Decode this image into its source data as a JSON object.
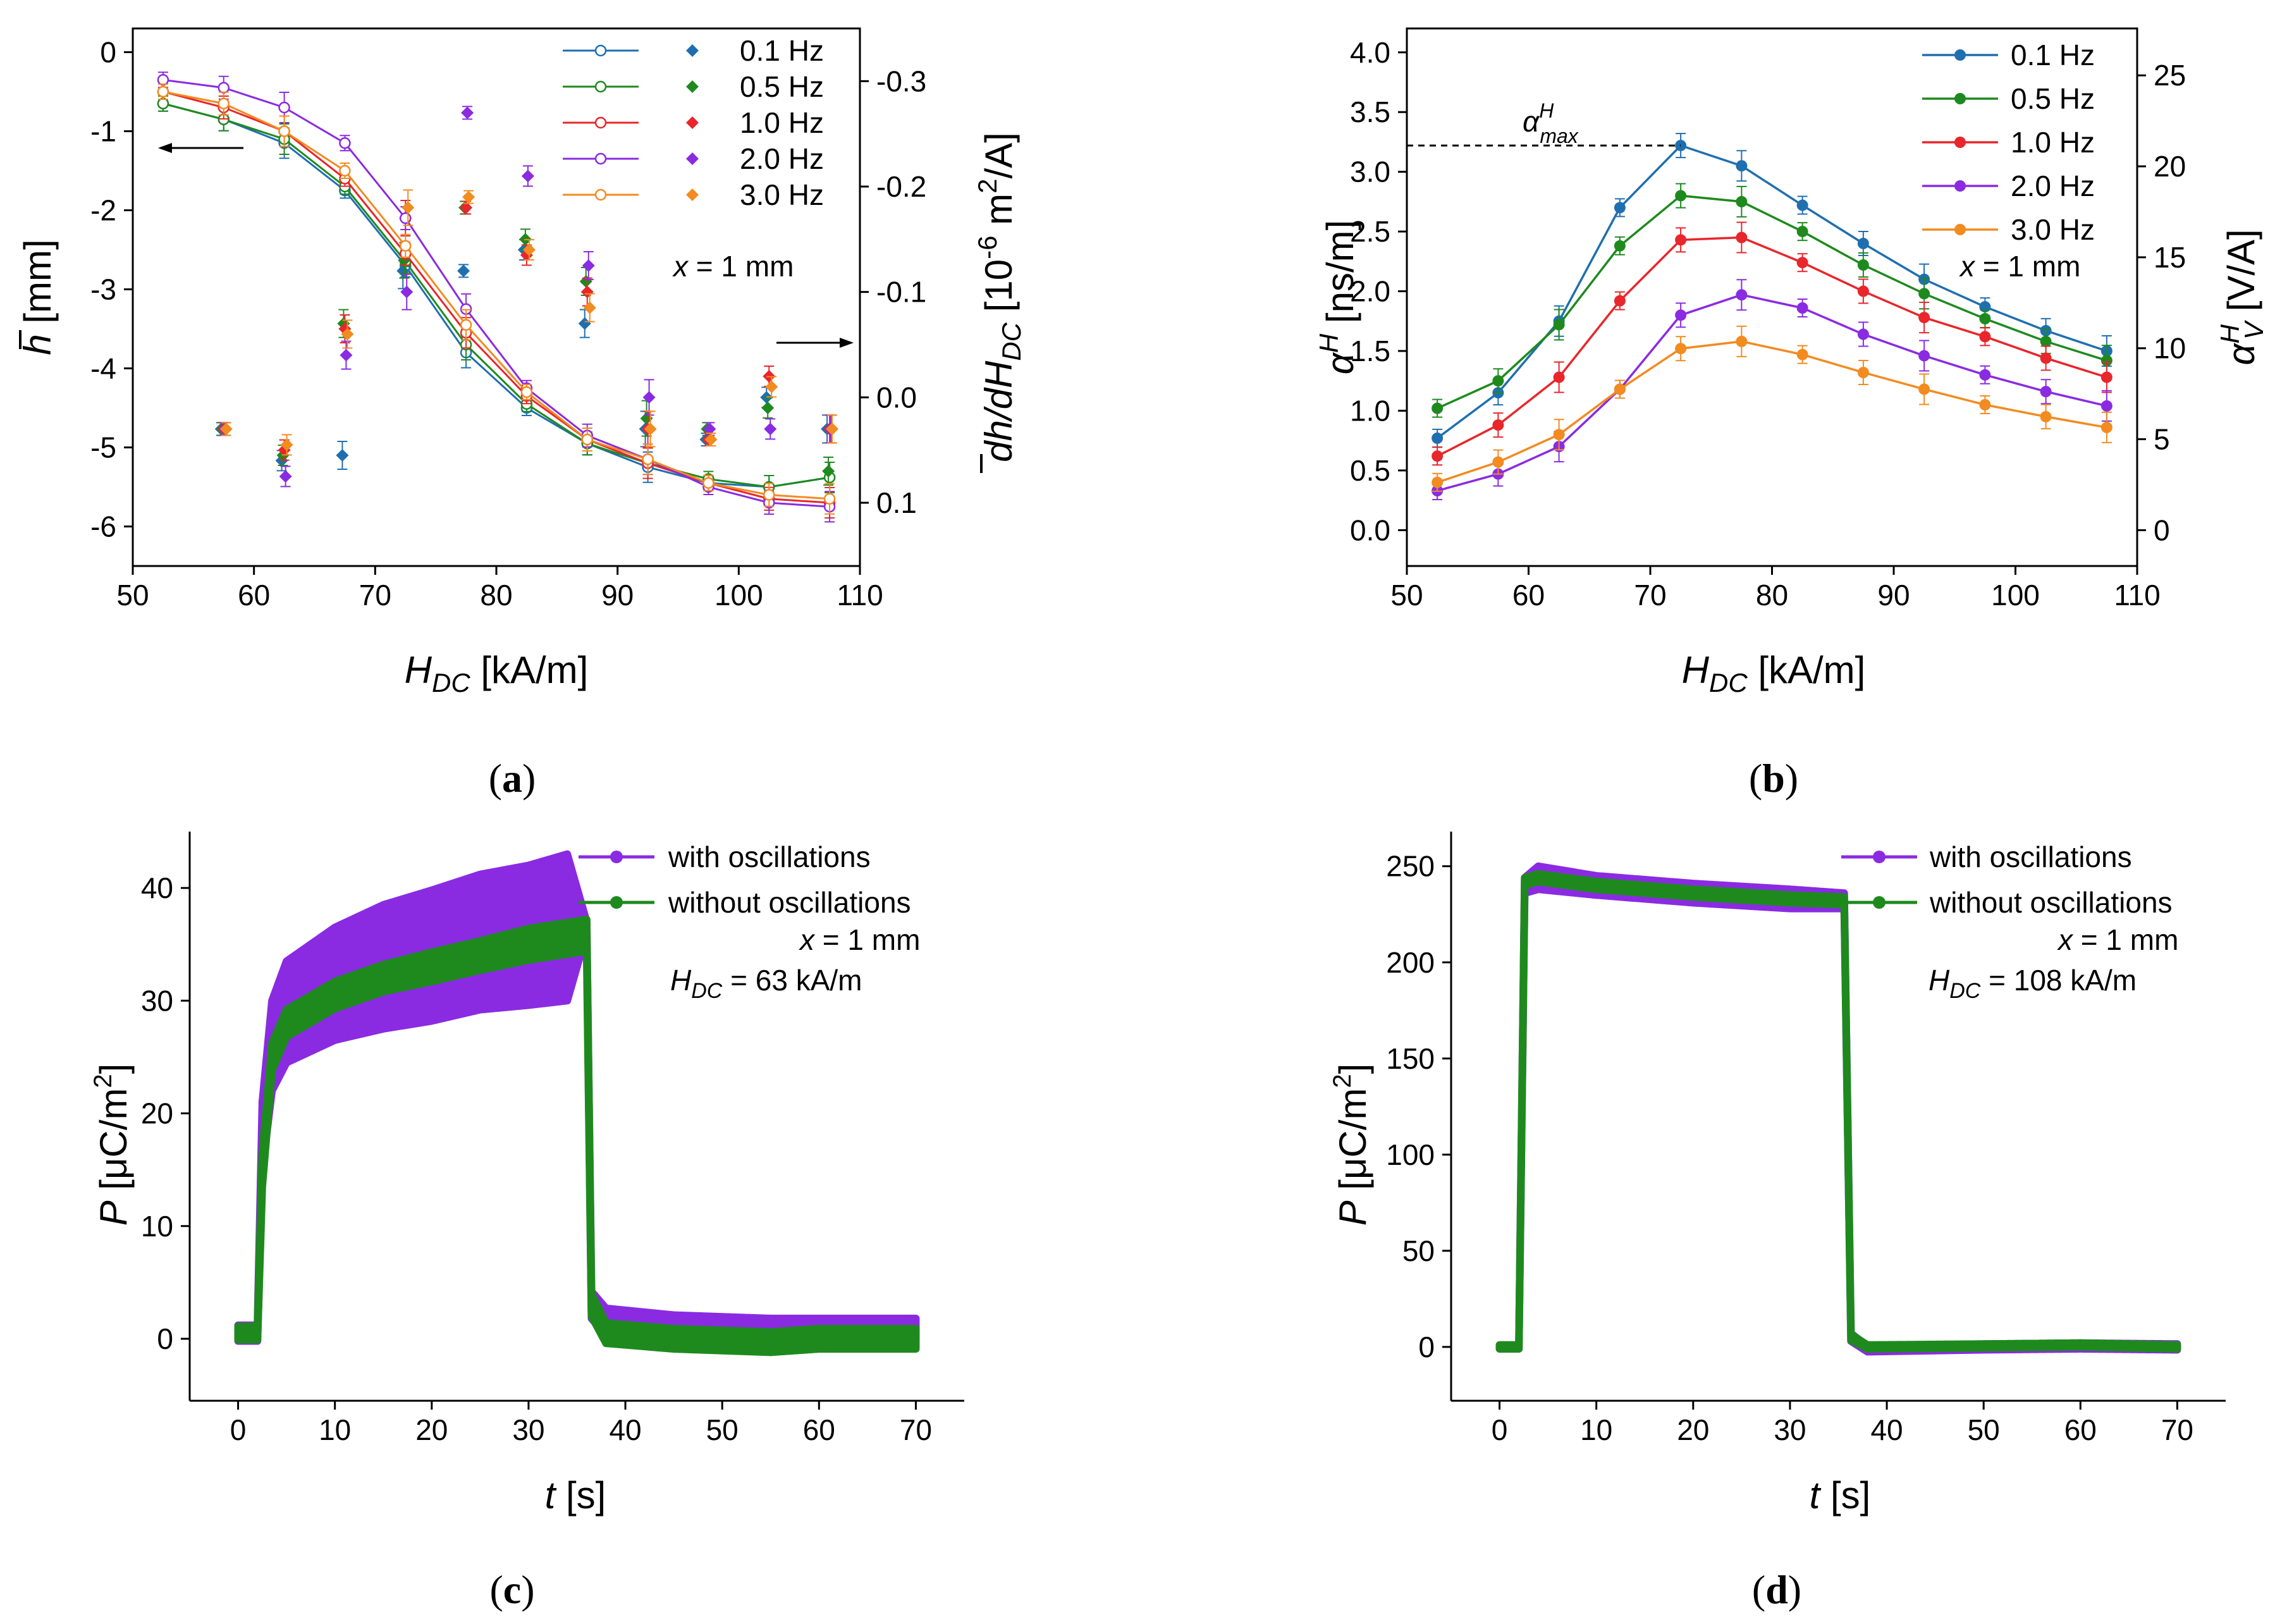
{
  "chart_data": [
    {
      "id": "a",
      "type": "line+scatter",
      "caption": "a",
      "xlabel": "H_DC [kA/m]",
      "xlabel_main": "H",
      "xlabel_sub": "DC",
      "xlabel_unit": " [kA/m]",
      "ylabel": "h̄ [mm]",
      "ylabel_main": "h",
      "ylabel_unit": " [mm]",
      "y2label": "dh̄/dH_DC [10^-6 m^2/A]",
      "y2label_parts": [
        "d",
        "h",
        "/d",
        "H",
        "DC",
        " [10",
        "-6",
        " m",
        "2",
        "/A]"
      ],
      "xlim": [
        50,
        110
      ],
      "ylim": [
        -6.5,
        0.3
      ],
      "y2lim": [
        0.16,
        -0.35
      ],
      "xticks": [
        50,
        60,
        70,
        80,
        90,
        100,
        110
      ],
      "yticks": [
        0,
        -1,
        -2,
        -3,
        -4,
        -5,
        -6
      ],
      "y2ticks": [
        -0.3,
        -0.2,
        -0.1,
        0.0,
        0.1
      ],
      "annotation": "x = 1 mm",
      "annotation_var": "x",
      "annotation_rest": " = 1 mm",
      "x": [
        52.5,
        57.5,
        62.5,
        67.5,
        72.5,
        77.5,
        82.5,
        87.5,
        92.5,
        97.5,
        102.5,
        107.5
      ],
      "x2": [
        57.5,
        62.5,
        67.5,
        72.5,
        77.5,
        82.5,
        87.5,
        92.5,
        97.5,
        102.5,
        107.5
      ],
      "series": [
        {
          "name": "0.1 Hz",
          "color": "#1f6fb0",
          "values": [
            -0.65,
            -0.85,
            -1.15,
            -1.75,
            -2.7,
            -3.8,
            -4.5,
            -4.95,
            -5.25,
            -5.45,
            -5.5,
            -5.38
          ],
          "deriv": [
            0.03,
            0.06,
            0.055,
            -0.12,
            -0.12,
            -0.14,
            -0.07,
            0.03,
            0.04,
            0.0,
            0.03
          ]
        },
        {
          "name": "0.5 Hz",
          "color": "#1e8a1e",
          "values": [
            -0.65,
            -0.85,
            -1.1,
            -1.7,
            -2.65,
            -3.7,
            -4.45,
            -4.95,
            -5.2,
            -5.4,
            -5.5,
            -5.38
          ],
          "deriv": [
            0.03,
            0.055,
            -0.07,
            -0.13,
            -0.18,
            -0.15,
            -0.11,
            0.02,
            0.03,
            0.01,
            0.07
          ]
        },
        {
          "name": "1.0 Hz",
          "color": "#e8262b",
          "values": [
            -0.5,
            -0.7,
            -1.0,
            -1.6,
            -2.55,
            -3.55,
            -4.35,
            -4.9,
            -5.2,
            -5.45,
            -5.65,
            -5.7
          ],
          "deriv": [
            0.03,
            0.05,
            -0.065,
            -0.17,
            -0.18,
            -0.135,
            -0.1,
            0.03,
            0.04,
            -0.02,
            0.03
          ]
        },
        {
          "name": "2.0 Hz",
          "color": "#8a2be2",
          "values": [
            -0.35,
            -0.45,
            -0.7,
            -1.15,
            -2.1,
            -3.25,
            -4.25,
            -4.85,
            -5.15,
            -5.5,
            -5.7,
            -5.75
          ],
          "deriv": [
            0.03,
            0.075,
            -0.04,
            -0.1,
            -0.27,
            -0.21,
            -0.125,
            0.0,
            0.03,
            0.03,
            0.03
          ]
        },
        {
          "name": "3.0 Hz",
          "color": "#f28b20",
          "values": [
            -0.5,
            -0.65,
            -1.0,
            -1.5,
            -2.45,
            -3.45,
            -4.3,
            -4.9,
            -5.15,
            -5.45,
            -5.6,
            -5.65
          ],
          "deriv": [
            0.03,
            0.045,
            -0.06,
            -0.18,
            -0.19,
            -0.14,
            -0.085,
            0.03,
            0.04,
            -0.01,
            0.03
          ]
        }
      ]
    },
    {
      "id": "b",
      "type": "line",
      "caption": "b",
      "xlabel": "H_DC [kA/m]",
      "xlabel_main": "H",
      "xlabel_sub": "DC",
      "xlabel_unit": " [kA/m]",
      "ylabel": "α^H [ns/m]",
      "ylabel_main": "α",
      "ylabel_sup": "H",
      "ylabel_unit": " [ns/m]",
      "y2label": "α_V^H [V/A]",
      "y2label_main": "α",
      "y2label_sup": "H",
      "y2label_sub": "V",
      "y2label_unit": " [V/A]",
      "xlim": [
        50,
        110
      ],
      "ylim": [
        -0.3,
        4.2
      ],
      "y2lim": [
        -1.97,
        27.58
      ],
      "xticks": [
        50,
        60,
        70,
        80,
        90,
        100,
        110
      ],
      "yticks": [
        0.0,
        0.5,
        1.0,
        1.5,
        2.0,
        2.5,
        3.0,
        3.5,
        4.0
      ],
      "yticklabels": [
        "0.0",
        "0.5",
        "1.0",
        "1.5",
        "2.0",
        "2.5",
        "3.0",
        "3.5",
        "4.0"
      ],
      "y2ticks": [
        0,
        5,
        10,
        15,
        20,
        25
      ],
      "annotation": "x = 1 mm",
      "annotation_var": "x",
      "annotation_rest": " = 1 mm",
      "max_label": "α_max^H",
      "max_label_main": "α",
      "max_label_sup": "H",
      "max_label_sub": "max",
      "max_value": 3.22,
      "x": [
        52.5,
        57.5,
        62.5,
        67.5,
        72.5,
        77.5,
        82.5,
        87.5,
        92.5,
        97.5,
        102.5,
        107.5
      ],
      "series": [
        {
          "name": "0.1 Hz",
          "color": "#1f6fb0",
          "values": [
            0.77,
            1.15,
            1.75,
            2.7,
            3.22,
            3.05,
            2.72,
            2.4,
            2.1,
            1.87,
            1.67,
            1.5
          ]
        },
        {
          "name": "0.5 Hz",
          "color": "#1e8a1e",
          "values": [
            1.02,
            1.25,
            1.72,
            2.38,
            2.8,
            2.75,
            2.5,
            2.22,
            1.98,
            1.77,
            1.58,
            1.42
          ]
        },
        {
          "name": "1.0 Hz",
          "color": "#e8262b",
          "values": [
            0.62,
            0.88,
            1.28,
            1.92,
            2.43,
            2.45,
            2.24,
            2.0,
            1.78,
            1.62,
            1.44,
            1.28
          ]
        },
        {
          "name": "2.0 Hz",
          "color": "#8a2be2",
          "values": [
            0.33,
            0.47,
            0.7,
            1.18,
            1.8,
            1.97,
            1.86,
            1.64,
            1.46,
            1.3,
            1.16,
            1.04
          ]
        },
        {
          "name": "3.0 Hz",
          "color": "#f28b20",
          "values": [
            0.4,
            0.57,
            0.8,
            1.18,
            1.52,
            1.58,
            1.47,
            1.32,
            1.18,
            1.05,
            0.95,
            0.86
          ]
        }
      ]
    },
    {
      "id": "c",
      "type": "line",
      "caption": "c",
      "xlabel": "t [s]",
      "xlabel_main": "t",
      "xlabel_unit": " [s]",
      "ylabel": "P [μC/m²]",
      "ylabel_main": "P",
      "ylabel_unit": " [μC/m",
      "ylabel_sup": "2",
      "ylabel_close": "]",
      "xlim": [
        -5,
        75
      ],
      "ylim": [
        -5.5,
        45
      ],
      "xticks": [
        0,
        10,
        20,
        30,
        40,
        50,
        60,
        70
      ],
      "yticks": [
        0,
        10,
        20,
        30,
        40
      ],
      "annotation1": "x = 1 mm",
      "annotation1_var": "x",
      "annotation1_rest": " = 1 mm",
      "annotation2": "H_DC = 63 kA/m",
      "annotation2_main": "H",
      "annotation2_sub": "DC",
      "annotation2_rest": " = 63 kA/m",
      "series": [
        {
          "name": "with oscillations",
          "color": "#8a2be2",
          "t": [
            0,
            2,
            2.5,
            3.5,
            5,
            10,
            15,
            20,
            25,
            30,
            34,
            36,
            36.5,
            38,
            45,
            55,
            60,
            70
          ],
          "mean": [
            0.5,
            0.5,
            18,
            26,
            29,
            31.5,
            33,
            34,
            35.2,
            35.8,
            36.5,
            36.5,
            3,
            1.5,
            1.0,
            0.8,
            0.8,
            0.8
          ],
          "amp": [
            0.7,
            0.7,
            3,
            4,
            4.5,
            5,
            5.5,
            5.8,
            6,
            6.2,
            6.5,
            0.5,
            1.2,
            1.2,
            1.1,
            1.0,
            1.0,
            1.0
          ]
        },
        {
          "name": "without oscillations",
          "color": "#1e8a1e",
          "t": [
            0,
            2,
            2.5,
            3.5,
            5,
            10,
            15,
            20,
            25,
            30,
            36,
            36.5,
            38,
            45,
            55,
            60,
            70
          ],
          "mean": [
            0.5,
            0.5,
            15,
            25,
            28,
            30.5,
            32,
            33,
            34,
            35,
            35.8,
            3,
            0.5,
            0.0,
            -0.3,
            0.0,
            0.0
          ],
          "amp": [
            0.6,
            0.6,
            1.5,
            1.2,
            1.2,
            1.2,
            1.2,
            1.3,
            1.3,
            1.4,
            1.4,
            1.0,
            0.9,
            0.9,
            0.9,
            0.9,
            0.9
          ]
        }
      ]
    },
    {
      "id": "d",
      "type": "line",
      "caption": "d",
      "xlabel": "t [s]",
      "xlabel_main": "t",
      "xlabel_unit": " [s]",
      "ylabel": "P [μC/m²]",
      "ylabel_main": "P",
      "ylabel_unit": " [μC/m",
      "ylabel_sup": "2",
      "ylabel_close": "]",
      "xlim": [
        -5,
        75
      ],
      "ylim": [
        -28,
        268
      ],
      "xticks": [
        0,
        10,
        20,
        30,
        40,
        50,
        60,
        70
      ],
      "yticks": [
        0,
        50,
        100,
        150,
        200,
        250
      ],
      "annotation1": "x = 1 mm",
      "annotation1_var": "x",
      "annotation1_rest": " = 1 mm",
      "annotation2": "H_DC = 108 kA/m",
      "annotation2_main": "H",
      "annotation2_sub": "DC",
      "annotation2_rest": " = 108 kA/m",
      "series": [
        {
          "name": "with oscillations",
          "color": "#8a2be2",
          "t": [
            0,
            2,
            2.6,
            4,
            10,
            20,
            30,
            35.6,
            36.3,
            38,
            50,
            60,
            70
          ],
          "mean": [
            0,
            0,
            240,
            244,
            240,
            236,
            233,
            232,
            5,
            -1,
            0,
            0.5,
            0
          ],
          "amp": [
            1,
            1,
            4,
            6,
            5,
            5,
            5,
            4,
            2,
            1.5,
            1.5,
            1.5,
            1.5
          ]
        },
        {
          "name": "without oscillations",
          "color": "#1e8a1e",
          "t": [
            0,
            2,
            2.6,
            4,
            10,
            20,
            30,
            35.6,
            36.3,
            38,
            50,
            60,
            70
          ],
          "mean": [
            0,
            0,
            242,
            244,
            240,
            236,
            233,
            232,
            5,
            0,
            0.5,
            1,
            0
          ],
          "amp": [
            1,
            1,
            2,
            2,
            2,
            2,
            2,
            2,
            1.5,
            1,
            1,
            1,
            1
          ]
        }
      ]
    }
  ]
}
